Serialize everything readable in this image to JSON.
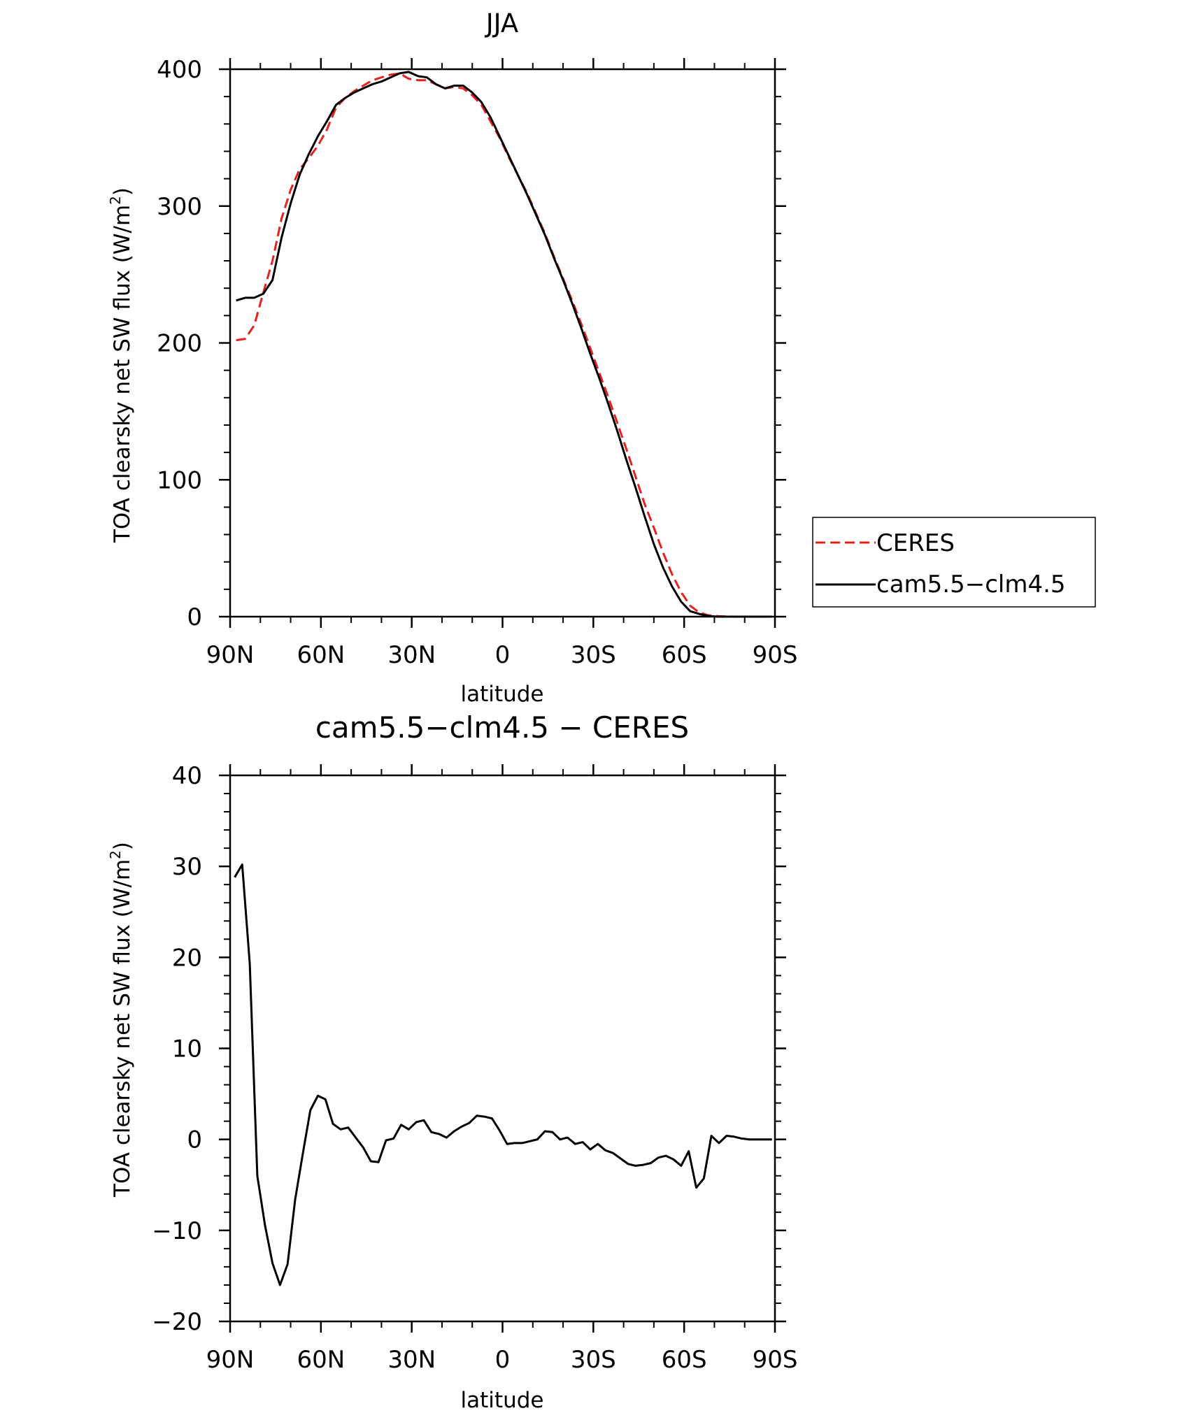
{
  "chart_data": [
    {
      "type": "line",
      "title": "JJA",
      "xlabel": "latitude",
      "ylabel": "TOA clearsky net SW flux (W/m²)",
      "ylabel_main": "TOA clearsky net SW flux (W/m",
      "ylabel_sup": "2",
      "ylabel_tail": ")",
      "xlim": [
        90,
        -90
      ],
      "ylim": [
        0,
        400
      ],
      "x_ticks": [
        90,
        60,
        30,
        0,
        -30,
        -60,
        -90
      ],
      "x_tick_labels": [
        "90N",
        "60N",
        "30N",
        "0",
        "30S",
        "60S",
        "90S"
      ],
      "y_ticks": [
        0,
        100,
        200,
        300,
        400
      ],
      "y_tick_labels": [
        "0",
        "100",
        "200",
        "300",
        "400"
      ],
      "grid": false,
      "legend": {
        "placement": "right",
        "entries": [
          "CERES",
          "cam5.5−clm4.5"
        ]
      },
      "series": [
        {
          "name": "CERES",
          "color": "#e8201e",
          "dash": "dashed",
          "x": [
            88,
            85,
            82,
            79,
            76,
            73,
            70,
            67,
            64,
            61,
            58,
            55,
            52,
            49,
            46,
            43,
            40,
            37,
            34,
            31,
            28,
            25,
            22,
            19,
            16,
            13,
            10,
            7,
            4,
            1,
            -2,
            -5,
            -8,
            -11,
            -14,
            -17,
            -20,
            -23,
            -26,
            -29,
            -32,
            -35,
            -38,
            -41,
            -44,
            -47,
            -50,
            -53,
            -56,
            -59,
            -62,
            -65,
            -68,
            -71,
            -74,
            -77,
            -80,
            -83,
            -86,
            -89
          ],
          "y": [
            202,
            203,
            213,
            237,
            260,
            291,
            312,
            327,
            335,
            344,
            356,
            372,
            379,
            384,
            388,
            392,
            394,
            396,
            397,
            393,
            392,
            392,
            389,
            386,
            387,
            386,
            381,
            374,
            362,
            350,
            336,
            323,
            310,
            295,
            280,
            263,
            247,
            231,
            214,
            196,
            178,
            160,
            141,
            122,
            102,
            82,
            65,
            47,
            31,
            18,
            8,
            3,
            1,
            0.4,
            0.1,
            0,
            0,
            0,
            0,
            0
          ]
        },
        {
          "name": "cam5.5−clm4.5",
          "color": "#000000",
          "dash": "solid",
          "x": [
            88,
            85,
            82,
            79,
            76,
            73,
            70,
            67,
            64,
            61,
            58,
            55,
            52,
            49,
            46,
            43,
            40,
            37,
            34,
            31,
            28,
            25,
            22,
            19,
            16,
            13,
            10,
            7,
            4,
            1,
            -2,
            -5,
            -8,
            -11,
            -14,
            -17,
            -20,
            -23,
            -26,
            -29,
            -32,
            -35,
            -38,
            -41,
            -44,
            -47,
            -50,
            -53,
            -56,
            -59,
            -62,
            -65,
            -68,
            -71,
            -74,
            -77,
            -80,
            -83,
            -86,
            -89
          ],
          "y": [
            231,
            233,
            233,
            236,
            246,
            277,
            302,
            323,
            338,
            351,
            362,
            374,
            379,
            383,
            386,
            389,
            391,
            394,
            397,
            398,
            395,
            394,
            389,
            386,
            388,
            388,
            383,
            376,
            365,
            351,
            337,
            323,
            309,
            294,
            279,
            262,
            246,
            229,
            211,
            192,
            174,
            155,
            135,
            114,
            94,
            73,
            53,
            36,
            22,
            11,
            4,
            2,
            0.5,
            0,
            0,
            0,
            0,
            0,
            0,
            0
          ]
        }
      ]
    },
    {
      "type": "line",
      "title": "cam5.5−clm4.5 − CERES",
      "xlabel": "latitude",
      "ylabel": "TOA clearsky net SW flux (W/m²)",
      "ylabel_main": "TOA clearsky net SW flux (W/m",
      "ylabel_sup": "2",
      "ylabel_tail": ")",
      "xlim": [
        90,
        -90
      ],
      "ylim": [
        -20,
        40
      ],
      "x_ticks": [
        90,
        60,
        30,
        0,
        -30,
        -60,
        -90
      ],
      "x_tick_labels": [
        "90N",
        "60N",
        "30N",
        "0",
        "30S",
        "60S",
        "90S"
      ],
      "y_ticks": [
        -20,
        -10,
        0,
        10,
        20,
        30,
        40
      ],
      "y_tick_labels": [
        "−20",
        "−10",
        "0",
        "10",
        "20",
        "30",
        "40"
      ],
      "grid": false,
      "series": [
        {
          "color": "#000000",
          "dash": "solid",
          "x": [
            88.5,
            86,
            83.5,
            81,
            78.5,
            76,
            73.5,
            71,
            68.5,
            66,
            63.5,
            61,
            58.5,
            56,
            53.5,
            51,
            48.5,
            46,
            43.5,
            41,
            38.5,
            36,
            33.5,
            31,
            28.5,
            26,
            23.5,
            21,
            18.5,
            16,
            13.5,
            11,
            8.5,
            6,
            3.5,
            1,
            -1.5,
            -4,
            -6.5,
            -9,
            -11.5,
            -14,
            -16.5,
            -19,
            -21.5,
            -24,
            -26.5,
            -29,
            -31.5,
            -34,
            -36.5,
            -39,
            -41.5,
            -44,
            -46.5,
            -49,
            -51.5,
            -54,
            -56.5,
            -59,
            -61.5,
            -64,
            -66.5,
            -69,
            -71.5,
            -74,
            -76.5,
            -79,
            -81.5,
            -84,
            -86.5,
            -89
          ],
          "y": [
            28.8,
            30.2,
            19.3,
            -4,
            -9.4,
            -13.6,
            -16,
            -13.7,
            -6.6,
            -1.6,
            3.2,
            4.8,
            4.4,
            1.7,
            1.1,
            1.3,
            0.2,
            -0.9,
            -2.4,
            -2.5,
            -0.1,
            0.1,
            1.6,
            1.1,
            1.9,
            2.1,
            0.8,
            0.6,
            0.2,
            0.9,
            1.4,
            1.8,
            2.6,
            2.5,
            2.3,
            1,
            -0.5,
            -0.4,
            -0.4,
            -0.2,
            0,
            0.9,
            0.8,
            0,
            0.2,
            -0.5,
            -0.3,
            -1.1,
            -0.5,
            -1.2,
            -1.5,
            -2.1,
            -2.7,
            -2.9,
            -2.8,
            -2.6,
            -2,
            -1.8,
            -2.2,
            -2.9,
            -1.3,
            -5.3,
            -4.3,
            0.4,
            -0.4,
            0.4,
            0.3,
            0.1,
            0,
            0,
            0,
            0
          ]
        }
      ]
    }
  ]
}
